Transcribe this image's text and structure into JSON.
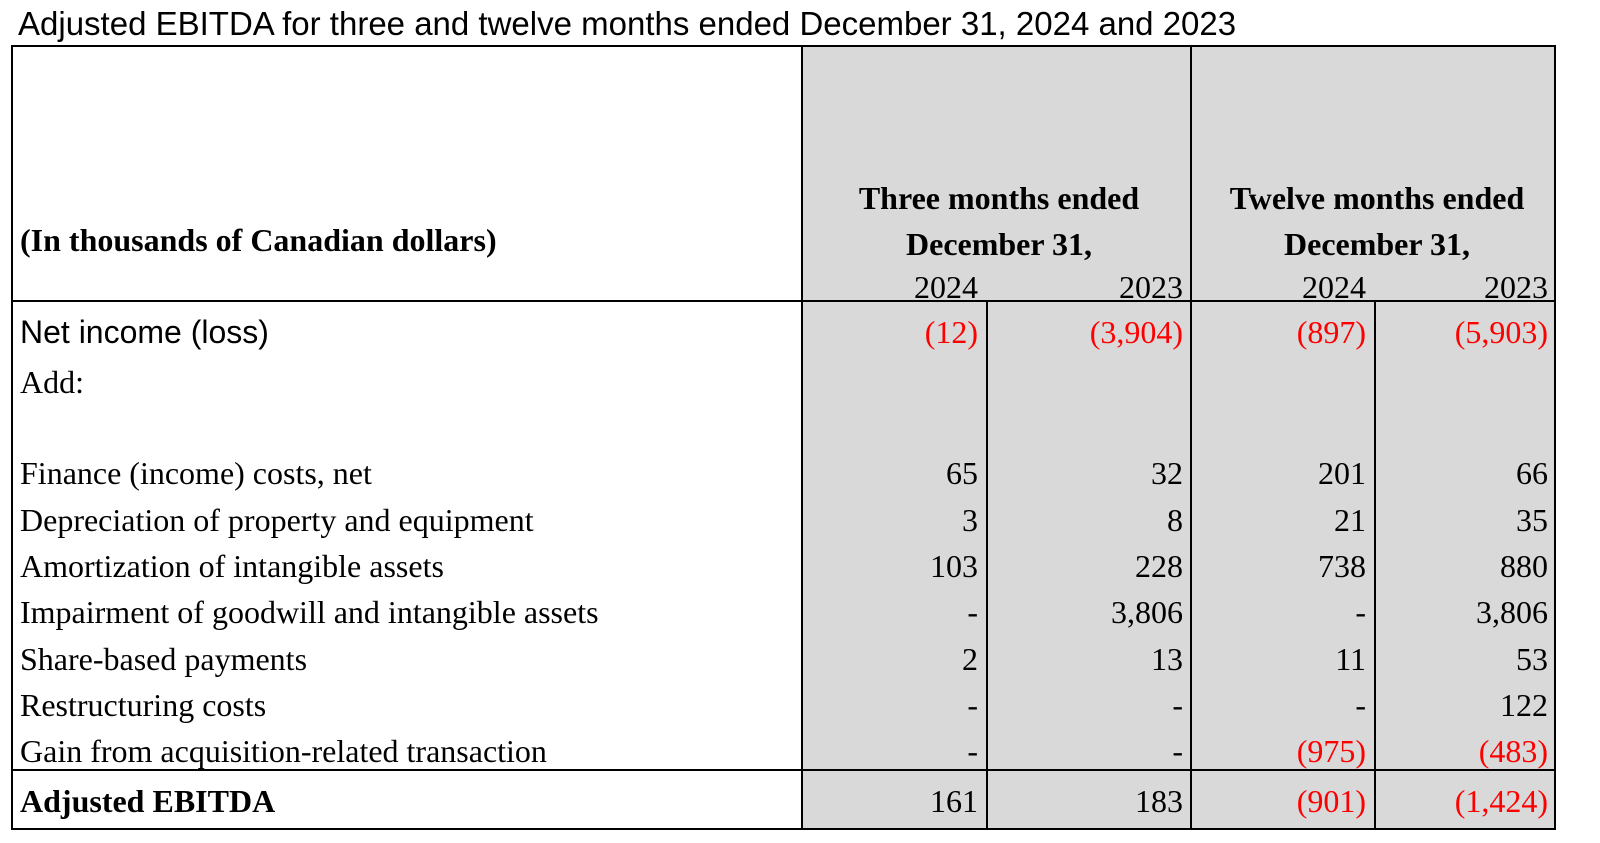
{
  "title": "Adjusted EBITDA for three and twelve months ended December 31, 2024 and 2023",
  "header": {
    "units": "(In thousands of Canadian dollars)",
    "periods": [
      {
        "label_line1": "Three months ended",
        "label_line2": "December 31,",
        "years": [
          "2024",
          "2023"
        ]
      },
      {
        "label_line1": "Twelve months ended",
        "label_line2": "December 31,",
        "years": [
          "2024",
          "2023"
        ]
      }
    ]
  },
  "rows": [
    {
      "label": "Net income (loss)",
      "values": [
        "(12)",
        "(3,904)",
        "(897)",
        "(5,903)"
      ],
      "negative": [
        true,
        true,
        true,
        true
      ]
    },
    {
      "label": "Add:",
      "values": [
        "",
        "",
        "",
        ""
      ],
      "negative": [
        false,
        false,
        false,
        false
      ]
    },
    {
      "label": "Finance (income) costs, net",
      "values": [
        "65",
        "32",
        "201",
        "66"
      ],
      "negative": [
        false,
        false,
        false,
        false
      ]
    },
    {
      "label": "Depreciation of property and equipment",
      "values": [
        "3",
        "8",
        "21",
        "35"
      ],
      "negative": [
        false,
        false,
        false,
        false
      ]
    },
    {
      "label": "Amortization of intangible assets",
      "values": [
        "103",
        "228",
        "738",
        "880"
      ],
      "negative": [
        false,
        false,
        false,
        false
      ]
    },
    {
      "label": "Impairment of goodwill and intangible assets",
      "values": [
        "-",
        "3,806",
        "-",
        "3,806"
      ],
      "negative": [
        false,
        false,
        false,
        false
      ]
    },
    {
      "label": "Share-based payments",
      "values": [
        "2",
        "13",
        "11",
        "53"
      ],
      "negative": [
        false,
        false,
        false,
        false
      ]
    },
    {
      "label": "Restructuring costs",
      "values": [
        "-",
        "-",
        "-",
        "122"
      ],
      "negative": [
        false,
        false,
        false,
        false
      ]
    },
    {
      "label": "Gain from acquisition-related transaction",
      "values": [
        "-",
        "-",
        "(975)",
        "(483)"
      ],
      "negative": [
        false,
        false,
        true,
        true
      ]
    }
  ],
  "total": {
    "label": "Adjusted EBITDA",
    "values": [
      "161",
      "183",
      "(901)",
      "(1,424)"
    ],
    "negative": [
      false,
      false,
      true,
      true
    ]
  },
  "colors": {
    "negative": "#ff0000",
    "shade": "#d9d9d9"
  }
}
